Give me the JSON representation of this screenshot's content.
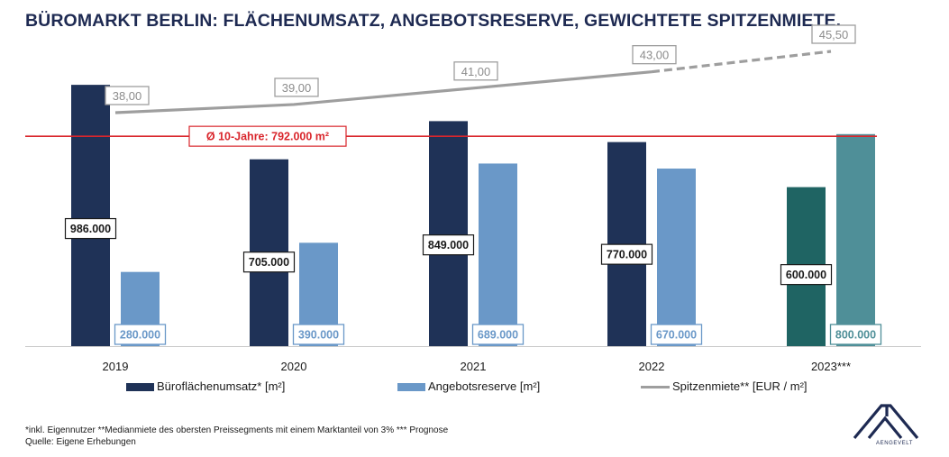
{
  "title": "BÜROMARKT BERLIN: FLÄCHENUMSATZ, ANGEBOTSRESERVE, GEWICHTETE SPITZENMIETE.",
  "chart_data": {
    "type": "bar",
    "categories": [
      "2019",
      "2020",
      "2021",
      "2022",
      "2023***"
    ],
    "series": [
      {
        "name": "Büroflächenumsatz* [m²]",
        "values": [
          986000,
          705000,
          849000,
          770000,
          600000
        ],
        "labels": [
          "986.000",
          "705.000",
          "849.000",
          "770.000",
          "600.000"
        ],
        "colors": [
          "#1f3257",
          "#1f3257",
          "#1f3257",
          "#1f3257",
          "#1f6463"
        ]
      },
      {
        "name": "Angebotsreserve [m²]",
        "values": [
          280000,
          390000,
          689000,
          670000,
          800000
        ],
        "labels": [
          "280.000",
          "390.000",
          "689.000",
          "670.000",
          "800.000"
        ],
        "colors": [
          "#6a98c8",
          "#6a98c8",
          "#6a98c8",
          "#6a98c8",
          "#4f8f98"
        ]
      },
      {
        "name": "Spitzenmiete** [EUR / m²]",
        "type": "line",
        "values": [
          38.0,
          39.0,
          41.0,
          43.0,
          45.5
        ],
        "labels": [
          "38,00",
          "39,00",
          "41,00",
          "43,00",
          "45,50"
        ],
        "dashed_from_index": 3,
        "color": "#9e9e9e"
      }
    ],
    "reference_line": {
      "label": "Ø 10-Jahre: 792.000 m²",
      "value": 792000,
      "color": "#d9262c"
    },
    "ylim_area": [
      0,
      1000000
    ],
    "legend_position": "bottom"
  },
  "legend": {
    "items": [
      {
        "label": "Büroflächenumsatz* [m²]",
        "color": "#1f3257",
        "kind": "box"
      },
      {
        "label": "Angebotsreserve [m²]",
        "color": "#6a98c8",
        "kind": "box"
      },
      {
        "label": "Spitzenmiete** [EUR / m²]",
        "color": "#9e9e9e",
        "kind": "line"
      }
    ]
  },
  "footnote": "*inkl. Eigennutzer **Medianmiete des obersten Preissegments mit einem Marktanteil von 3% *** Prognose",
  "source": "Quelle: Eigene Erhebungen",
  "logo": {
    "text": "AENGEVELT",
    "icon": "aengevelt-logo-icon",
    "color": "#1e2a52"
  }
}
